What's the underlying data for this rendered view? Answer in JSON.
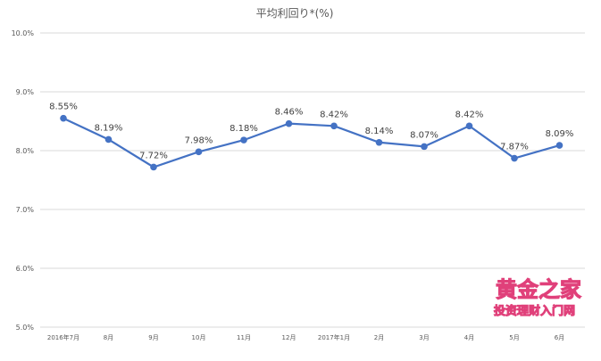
{
  "chart_data": {
    "type": "line",
    "title": "平均利回り*(%)",
    "categories": [
      "2016年7月",
      "8月",
      "9月",
      "10月",
      "11月",
      "12月",
      "2017年1月",
      "2月",
      "3月",
      "4月",
      "5月",
      "6月"
    ],
    "series": [
      {
        "values": [
          8.55,
          8.19,
          7.72,
          7.98,
          8.18,
          8.46,
          8.42,
          8.14,
          8.07,
          8.42,
          7.87,
          8.09
        ]
      }
    ],
    "data_labels": [
      "8.55%",
      "8.19%",
      "7.72%",
      "7.98%",
      "8.18%",
      "8.46%",
      "8.42%",
      "8.14%",
      "8.07%",
      "8.42%",
      "7.87%",
      "8.09%"
    ],
    "ylim": [
      5.0,
      10.0
    ],
    "yticks": [
      "5.0%",
      "6.0%",
      "7.0%",
      "8.0%",
      "9.0%",
      "10.0%"
    ],
    "grid": true,
    "legend": "none",
    "line_color": "#4472c4"
  },
  "watermark": {
    "line1": "黄金之家",
    "line2": "投资理财入门网"
  }
}
